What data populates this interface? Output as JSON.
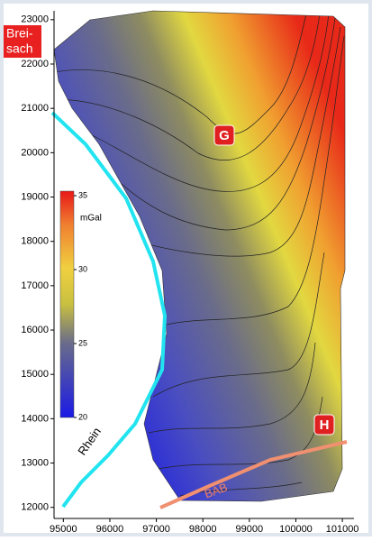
{
  "map": {
    "xlim": [
      94800,
      101250
    ],
    "ylim": [
      11750,
      23200
    ],
    "xticks": [
      95000,
      96000,
      97000,
      98000,
      99000,
      100000,
      101000
    ],
    "yticks": [
      12000,
      13000,
      14000,
      15000,
      16000,
      17000,
      18000,
      19000,
      20000,
      21000,
      22000,
      23000
    ],
    "colorbar": {
      "unit": "mGal",
      "lim": [
        20,
        35
      ],
      "ticks": [
        20,
        25,
        30,
        35
      ]
    },
    "labels": {
      "town": [
        "Brei-",
        "sach"
      ],
      "point_g": "G",
      "point_h": "H",
      "river": "Rhein",
      "road": "BAB"
    }
  }
}
